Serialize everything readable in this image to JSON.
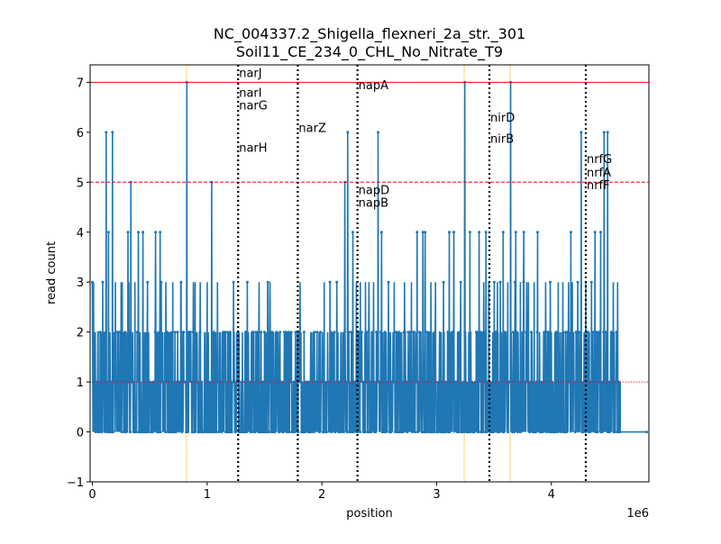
{
  "chart_data": {
    "type": "line",
    "title_line1": "NC_004337.2_Shigella_flexneri_2a_str._301",
    "title_line2": "Soil11_CE_234_0_CHL_No_Nitrate_T9",
    "xlabel": "position",
    "ylabel": "read count",
    "x_offset_label": "1e6",
    "xlim": [
      -20000,
      4850000
    ],
    "ylim": [
      -1,
      7.35
    ],
    "x_ticks": [
      {
        "value": 0,
        "label": "0"
      },
      {
        "value": 1000000,
        "label": "1"
      },
      {
        "value": 2000000,
        "label": "2"
      },
      {
        "value": 3000000,
        "label": "3"
      },
      {
        "value": 4000000,
        "label": "4"
      }
    ],
    "y_ticks": [
      {
        "value": -1,
        "label": "−1"
      },
      {
        "value": 0,
        "label": "0"
      },
      {
        "value": 1,
        "label": "1"
      },
      {
        "value": 2,
        "label": "2"
      },
      {
        "value": 3,
        "label": "3"
      },
      {
        "value": 4,
        "label": "4"
      },
      {
        "value": 5,
        "label": "5"
      },
      {
        "value": 6,
        "label": "6"
      },
      {
        "value": 7,
        "label": "7"
      }
    ],
    "hlines": [
      {
        "y": 7,
        "color": "#ff0000",
        "style": "solid"
      },
      {
        "y": 5,
        "color": "#ff0000",
        "style": "dashed"
      },
      {
        "y": 1,
        "color": "#ff0000",
        "style": "dotted"
      }
    ],
    "orange_vlines": [
      820000,
      3240000,
      3640000
    ],
    "gene_lines": [
      1270000,
      1790000,
      2310000,
      3460000,
      4300000
    ],
    "gene_labels": [
      {
        "text": "narJ",
        "x": 1270000,
        "y": 7.2
      },
      {
        "text": "narI",
        "x": 1270000,
        "y": 6.8
      },
      {
        "text": "narG",
        "x": 1270000,
        "y": 6.55
      },
      {
        "text": "narH",
        "x": 1270000,
        "y": 5.7
      },
      {
        "text": "narZ",
        "x": 1790000,
        "y": 6.1
      },
      {
        "text": "napA",
        "x": 2310000,
        "y": 6.95
      },
      {
        "text": "napD",
        "x": 2310000,
        "y": 4.85
      },
      {
        "text": "napB",
        "x": 2310000,
        "y": 4.6
      },
      {
        "text": "nirD",
        "x": 3460000,
        "y": 6.3
      },
      {
        "text": "nirB",
        "x": 3460000,
        "y": 5.88
      },
      {
        "text": "nrfG",
        "x": 4300000,
        "y": 5.47
      },
      {
        "text": "nrfA",
        "x": 4300000,
        "y": 5.2
      },
      {
        "text": "nrfF",
        "x": 4300000,
        "y": 4.95
      }
    ],
    "series_color": "#1f77b4",
    "peaks": [
      [
        0,
        3
      ],
      [
        90000,
        3
      ],
      [
        120000,
        6
      ],
      [
        140000,
        4
      ],
      [
        175000,
        6
      ],
      [
        200000,
        3
      ],
      [
        260000,
        3
      ],
      [
        310000,
        4
      ],
      [
        335000,
        5
      ],
      [
        370000,
        3
      ],
      [
        400000,
        4
      ],
      [
        440000,
        4
      ],
      [
        480000,
        3
      ],
      [
        550000,
        4
      ],
      [
        590000,
        4
      ],
      [
        640000,
        3
      ],
      [
        700000,
        3
      ],
      [
        770000,
        3
      ],
      [
        822000,
        7
      ],
      [
        880000,
        3
      ],
      [
        940000,
        3
      ],
      [
        1000000,
        3
      ],
      [
        1040000,
        5
      ],
      [
        1090000,
        3
      ],
      [
        1230000,
        3
      ],
      [
        1350000,
        3
      ],
      [
        1530000,
        3
      ],
      [
        1700000,
        2
      ],
      [
        1810000,
        3
      ],
      [
        2020000,
        3
      ],
      [
        2070000,
        3
      ],
      [
        2130000,
        3
      ],
      [
        2200000,
        5
      ],
      [
        2225000,
        6
      ],
      [
        2270000,
        4
      ],
      [
        2300000,
        3
      ],
      [
        2380000,
        3
      ],
      [
        2410000,
        3
      ],
      [
        2450000,
        3
      ],
      [
        2490000,
        6
      ],
      [
        2520000,
        4
      ],
      [
        2580000,
        3
      ],
      [
        2630000,
        3
      ],
      [
        2720000,
        3
      ],
      [
        2780000,
        3
      ],
      [
        2830000,
        4
      ],
      [
        2880000,
        4
      ],
      [
        2900000,
        4
      ],
      [
        2950000,
        3
      ],
      [
        2990000,
        3
      ],
      [
        3060000,
        3
      ],
      [
        3110000,
        4
      ],
      [
        3150000,
        4
      ],
      [
        3210000,
        3
      ],
      [
        3244000,
        7
      ],
      [
        3290000,
        4
      ],
      [
        3370000,
        4
      ],
      [
        3430000,
        4
      ],
      [
        3455000,
        3
      ],
      [
        3530000,
        3
      ],
      [
        3580000,
        4
      ],
      [
        3620000,
        3
      ],
      [
        3644000,
        7
      ],
      [
        3690000,
        4
      ],
      [
        3730000,
        3
      ],
      [
        3760000,
        4
      ],
      [
        3800000,
        3
      ],
      [
        3850000,
        3
      ],
      [
        3880000,
        4
      ],
      [
        3950000,
        3
      ],
      [
        3990000,
        3
      ],
      [
        4060000,
        3
      ],
      [
        4100000,
        3
      ],
      [
        4170000,
        4
      ],
      [
        4230000,
        3
      ],
      [
        4260000,
        6
      ],
      [
        4300000,
        3
      ],
      [
        4350000,
        3
      ],
      [
        4380000,
        4
      ],
      [
        4430000,
        4
      ],
      [
        4460000,
        6
      ],
      [
        4490000,
        6
      ],
      [
        4540000,
        3
      ],
      [
        4570000,
        2
      ]
    ],
    "noise_range": [
      0,
      4600000
    ],
    "flat_tail": [
      4600000,
      4830000
    ]
  }
}
